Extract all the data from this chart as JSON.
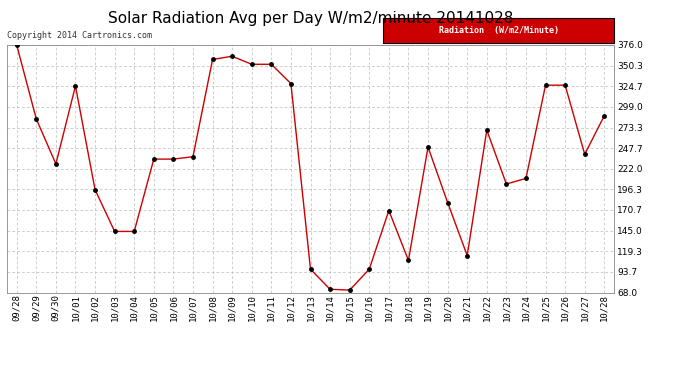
{
  "title": "Solar Radiation Avg per Day W/m2/minute 20141028",
  "copyright": "Copyright 2014 Cartronics.com",
  "legend_label": "Radiation  (W/m2/Minute)",
  "dates": [
    "09/28",
    "09/29",
    "09/30",
    "10/01",
    "10/02",
    "10/03",
    "10/04",
    "10/05",
    "10/06",
    "10/07",
    "10/08",
    "10/09",
    "10/10",
    "10/11",
    "10/12",
    "10/13",
    "10/14",
    "10/15",
    "10/16",
    "10/17",
    "10/18",
    "10/19",
    "10/20",
    "10/21",
    "10/22",
    "10/23",
    "10/24",
    "10/25",
    "10/26",
    "10/27",
    "10/28"
  ],
  "values": [
    376.0,
    284.0,
    228.0,
    325.0,
    196.0,
    144.0,
    144.0,
    234.0,
    234.0,
    237.0,
    358.0,
    362.0,
    352.0,
    352.0,
    328.0,
    97.0,
    72.0,
    71.0,
    97.0,
    170.0,
    108.0,
    249.0,
    180.0,
    114.0,
    270.0,
    203.0,
    210.0,
    326.0,
    326.0,
    240.0,
    288.0
  ],
  "line_color": "#cc0000",
  "marker_color": "#000000",
  "bg_color": "#ffffff",
  "grid_color": "#bbbbbb",
  "ylim": [
    68.0,
    376.0
  ],
  "yticks": [
    68.0,
    93.7,
    119.3,
    145.0,
    170.7,
    196.3,
    222.0,
    247.7,
    273.3,
    299.0,
    324.7,
    350.3,
    376.0
  ],
  "legend_bg": "#cc0000",
  "legend_text_color": "#ffffff",
  "title_fontsize": 11,
  "axis_fontsize": 6.5,
  "copyright_fontsize": 6
}
